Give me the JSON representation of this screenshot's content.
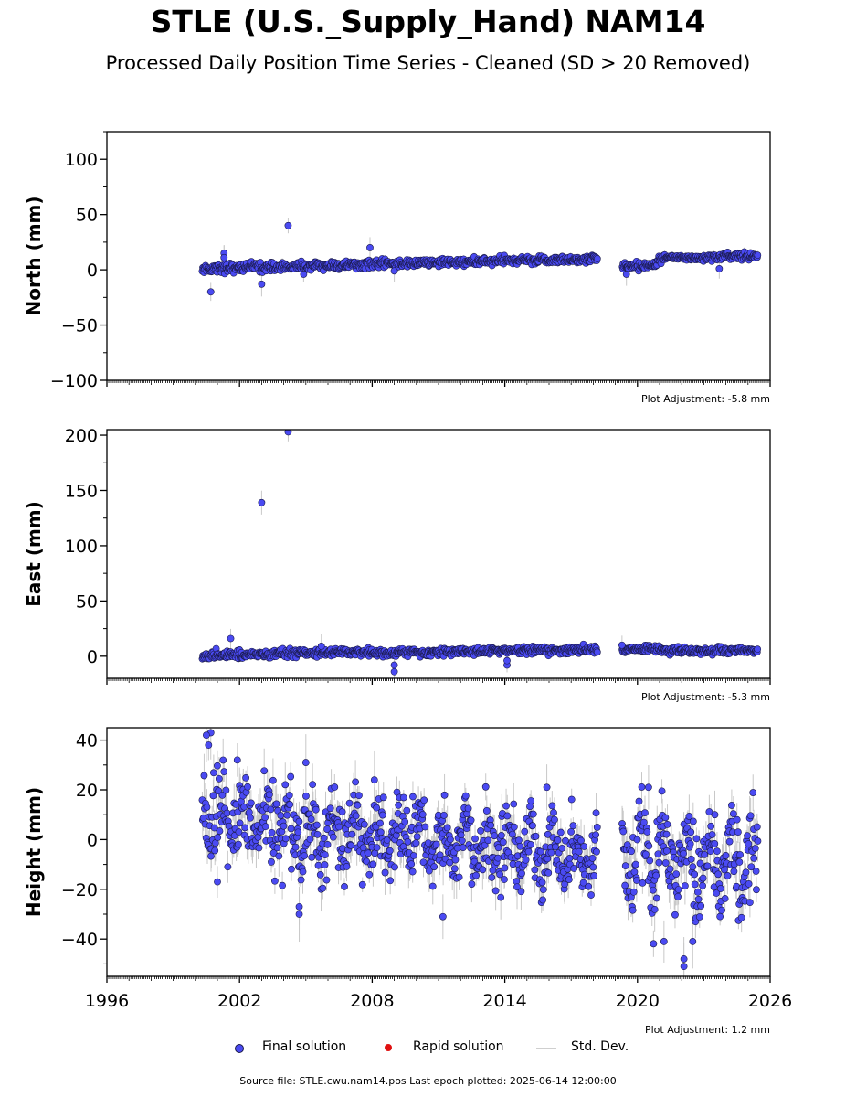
{
  "title": "STLE (U.S._Supply_Hand) NAM14",
  "subtitle": "Processed Daily Position Time Series - Cleaned (SD > 20 Removed)",
  "footer": "Source file: STLE.cwu.nam14.pos  Last epoch plotted: 2025-06-14 12:00:00",
  "legend": {
    "final": "Final solution",
    "rapid": "Rapid solution",
    "stddev": "Std. Dev."
  },
  "colors": {
    "final": "#4a4af2",
    "final_edge": "#1a1a4a",
    "rapid": "#e01010",
    "stddev": "#c8c8c8"
  },
  "chart_data": [
    {
      "type": "scatter",
      "component": "North",
      "ylabel": "North (mm)",
      "ylim": [
        -100,
        125
      ],
      "yticks": [
        -100,
        -50,
        0,
        50,
        100
      ],
      "xlim": [
        1996,
        2026
      ],
      "adjustment": "Plot Adjustment: -5.8 mm",
      "segments": [
        {
          "x0": 2000.3,
          "x1": 2003.0,
          "y0": 1,
          "y1": 3,
          "noise": 2.2
        },
        {
          "x0": 2003.0,
          "x1": 2008.0,
          "y0": 2,
          "y1": 5,
          "noise": 1.8
        },
        {
          "x0": 2008.0,
          "x1": 2018.2,
          "y0": 5,
          "y1": 10,
          "noise": 1.8
        },
        {
          "x0": 2019.3,
          "x1": 2020.9,
          "y0": 3,
          "y1": 5,
          "noise": 1.8
        },
        {
          "x0": 2020.9,
          "x1": 2025.45,
          "y0": 10,
          "y1": 13,
          "noise": 1.6
        }
      ],
      "outliers": [
        {
          "x": 2000.7,
          "y": -20
        },
        {
          "x": 2001.3,
          "y": 15
        },
        {
          "x": 2001.3,
          "y": 11
        },
        {
          "x": 2003.0,
          "y": -13
        },
        {
          "x": 2004.2,
          "y": 40
        },
        {
          "x": 2007.9,
          "y": 20
        },
        {
          "x": 2004.9,
          "y": -4
        },
        {
          "x": 2009.0,
          "y": -1
        },
        {
          "x": 2019.5,
          "y": -4
        },
        {
          "x": 2023.7,
          "y": 1
        }
      ]
    },
    {
      "type": "scatter",
      "component": "East",
      "ylabel": "East (mm)",
      "ylim": [
        -20,
        205
      ],
      "yticks": [
        0,
        50,
        100,
        150,
        200
      ],
      "xlim": [
        1996,
        2026
      ],
      "adjustment": "Plot Adjustment: -5.3 mm",
      "segments": [
        {
          "x0": 2000.3,
          "x1": 2003.0,
          "y0": 0,
          "y1": 2,
          "noise": 1.8
        },
        {
          "x0": 2003.0,
          "x1": 2008.0,
          "y0": 2,
          "y1": 4,
          "noise": 1.8
        },
        {
          "x0": 2008.0,
          "x1": 2018.2,
          "y0": 3,
          "y1": 6,
          "noise": 1.6
        },
        {
          "x0": 2019.3,
          "x1": 2021.0,
          "y0": 6,
          "y1": 7,
          "noise": 1.6
        },
        {
          "x0": 2021.0,
          "x1": 2025.45,
          "y0": 5,
          "y1": 5,
          "noise": 1.5
        }
      ],
      "outliers": [
        {
          "x": 2004.2,
          "y": 203
        },
        {
          "x": 2003.0,
          "y": 139
        },
        {
          "x": 2001.6,
          "y": 16
        },
        {
          "x": 2009.0,
          "y": -8
        },
        {
          "x": 2009.0,
          "y": -14
        },
        {
          "x": 2014.1,
          "y": -8
        },
        {
          "x": 2014.1,
          "y": -4
        },
        {
          "x": 2005.7,
          "y": 9
        },
        {
          "x": 2019.3,
          "y": 10
        }
      ]
    },
    {
      "type": "scatter",
      "component": "Height",
      "ylabel": "Height (mm)",
      "ylim": [
        -55,
        45
      ],
      "yticks": [
        -40,
        -20,
        0,
        20,
        40
      ],
      "xlim": [
        1996,
        2026
      ],
      "xticks": [
        1996,
        2002,
        2008,
        2014,
        2020,
        2026
      ],
      "adjustment": "Plot Adjustment: 1.2 mm",
      "segments": [
        {
          "x0": 2000.3,
          "x1": 2005.5,
          "y0": 10,
          "y1": 2,
          "noise": 8,
          "amp": 6
        },
        {
          "x0": 2005.5,
          "x1": 2018.2,
          "y0": 2,
          "y1": -6,
          "noise": 7,
          "amp": 8
        },
        {
          "x0": 2019.3,
          "x1": 2025.45,
          "y0": -8,
          "y1": -10,
          "noise": 8,
          "amp": 10
        }
      ],
      "outliers": [
        {
          "x": 2000.7,
          "y": 43
        },
        {
          "x": 2000.5,
          "y": 42
        },
        {
          "x": 2000.6,
          "y": 38
        },
        {
          "x": 2001.9,
          "y": 32
        },
        {
          "x": 2005.0,
          "y": 31
        },
        {
          "x": 2004.7,
          "y": -30
        },
        {
          "x": 2004.7,
          "y": -27
        },
        {
          "x": 2011.2,
          "y": -31
        },
        {
          "x": 2015.9,
          "y": 21
        },
        {
          "x": 2020.5,
          "y": 21
        },
        {
          "x": 2022.1,
          "y": -48
        },
        {
          "x": 2022.1,
          "y": -51
        },
        {
          "x": 2022.5,
          "y": -41
        },
        {
          "x": 2021.2,
          "y": -41
        },
        {
          "x": 2023.5,
          "y": 10
        },
        {
          "x": 2024.5,
          "y": 8
        },
        {
          "x": 2001.0,
          "y": -17
        },
        {
          "x": 2008.1,
          "y": 24
        }
      ]
    }
  ]
}
